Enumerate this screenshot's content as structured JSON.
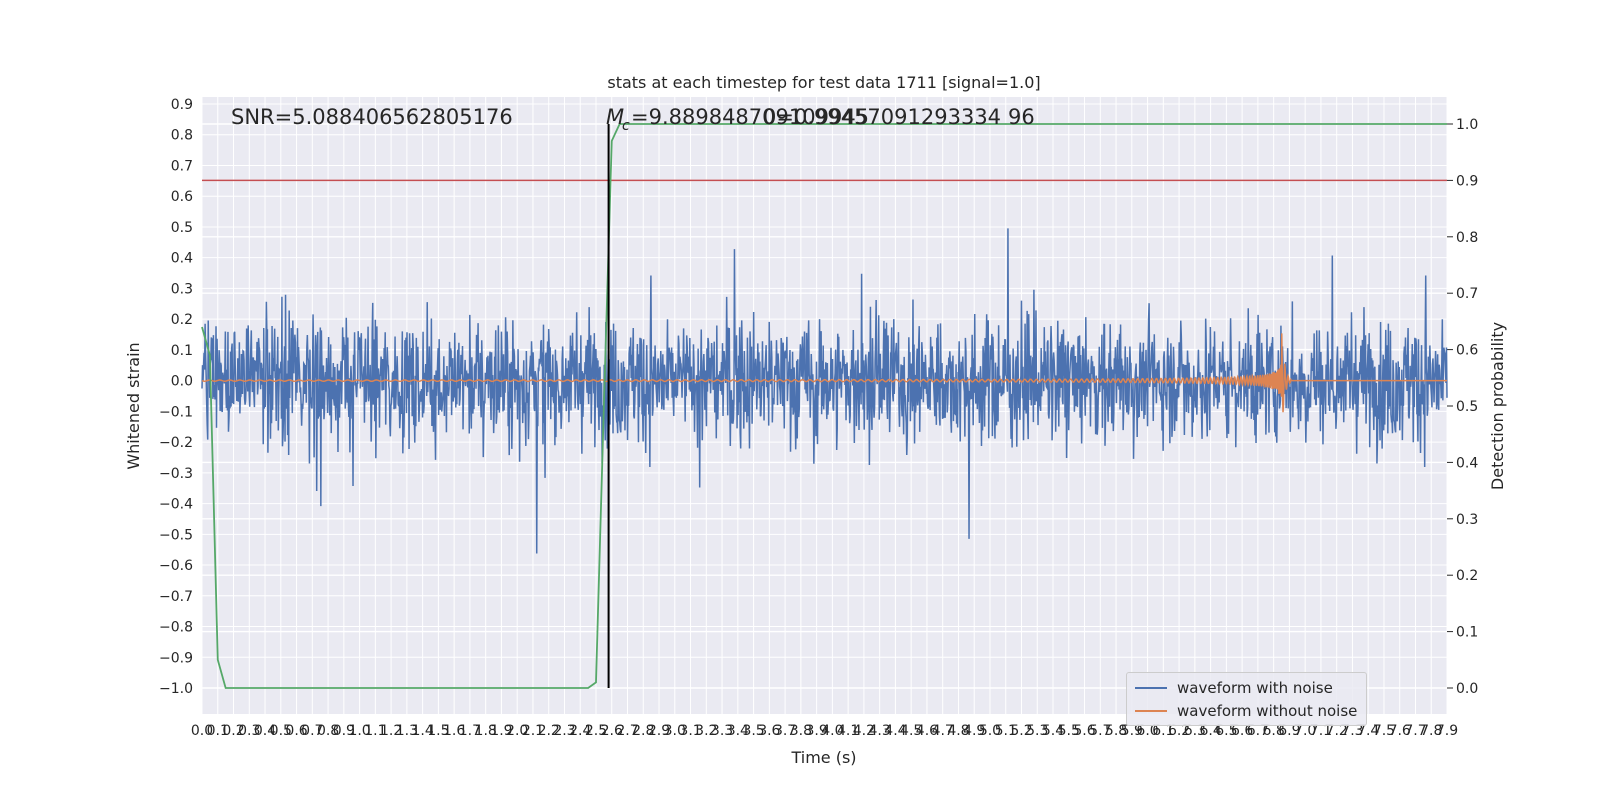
{
  "chart_data": {
    "type": "line",
    "title": "stats at each timestep for test data 1711 [signal=1.0]",
    "xlabel": "Time (s)",
    "ylabel": "Whitened strain",
    "ylabel_right": "Detection probability",
    "xlim": [
      0.0,
      7.9
    ],
    "ylim": [
      -1.0,
      0.9
    ],
    "ylim_right": [
      0.0,
      1.0
    ],
    "x_ticks": [
      "0.0",
      "0.1",
      "0.2",
      "0.3",
      "0.4",
      "0.5",
      "0.6",
      "0.7",
      "0.8",
      "0.9",
      "1.0",
      "1.1",
      "1.2",
      "1.3",
      "1.4",
      "1.5",
      "1.6",
      "1.7",
      "1.8",
      "1.9",
      "2.0",
      "2.1",
      "2.2",
      "2.3",
      "2.4",
      "2.5",
      "2.6",
      "2.7",
      "2.8",
      "2.9",
      "3.0",
      "3.1",
      "3.2",
      "3.3",
      "3.4",
      "3.5",
      "3.6",
      "3.7",
      "3.8",
      "3.9",
      "4.0",
      "4.1",
      "4.2",
      "4.3",
      "4.4",
      "4.5",
      "4.6",
      "4.7",
      "4.8",
      "4.9",
      "5.0",
      "5.1",
      "5.2",
      "5.3",
      "5.4",
      "5.5",
      "5.6",
      "5.7",
      "5.8",
      "5.9",
      "6.0",
      "6.1",
      "6.2",
      "6.3",
      "6.4",
      "6.5",
      "6.6",
      "6.7",
      "6.8",
      "6.9",
      "7.0",
      "7.1",
      "7.2",
      "7.3",
      "7.4",
      "7.5",
      "7.6",
      "7.7",
      "7.8",
      "7.9"
    ],
    "y_ticks": [
      "0.9",
      "0.8",
      "0.7",
      "0.6",
      "0.5",
      "0.4",
      "0.3",
      "0.2",
      "0.1",
      "0.0",
      "−0.1",
      "−0.2",
      "−0.3",
      "−0.4",
      "−0.5",
      "−0.6",
      "−0.7",
      "−0.8",
      "−0.9",
      "−1.0"
    ],
    "y_ticks_right": [
      "1.0",
      "0.9",
      "0.8",
      "0.7",
      "0.6",
      "0.5",
      "0.4",
      "0.3",
      "0.2",
      "0.1",
      "0.0"
    ],
    "annotations": {
      "snr": "SNR=5.088406562805176",
      "mc": "=9.889848709109945",
      "mc_overlap": "0=0.99457091293334 96"
    },
    "mc_symbol": "M",
    "mc_subscript": "c",
    "threshold_probability": 0.9,
    "merger_time": 2.58,
    "series": [
      {
        "name": "waveform with noise",
        "color": "#4c72b0",
        "amplitude_range": [
          -1.0,
          0.83
        ]
      },
      {
        "name": "waveform without noise",
        "color": "#dd8452",
        "peak_time": 6.85,
        "peak_amplitude": 0.19
      },
      {
        "name": "",
        "color": "#55a868",
        "axis": "right",
        "x": [
          0.0,
          0.05,
          0.1,
          0.15,
          0.2,
          2.45,
          2.5,
          2.55,
          2.6,
          2.65,
          7.9
        ],
        "values": [
          0.64,
          0.59,
          0.05,
          0.0,
          0.0,
          0.0,
          0.01,
          0.5,
          0.97,
          1.0,
          1.0
        ]
      }
    ],
    "threshold_color": "#c44e52",
    "grid": true,
    "legend_position": "lower right"
  }
}
